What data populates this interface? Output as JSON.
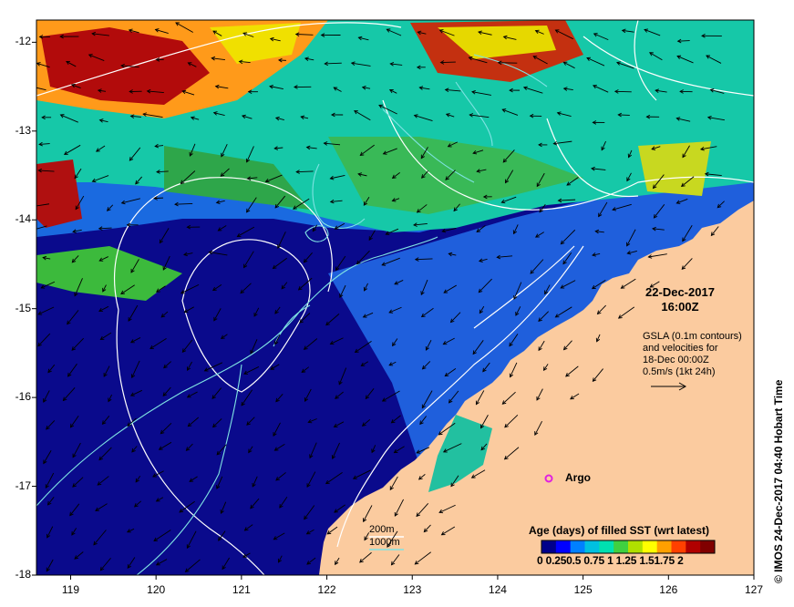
{
  "map": {
    "longitude_ticks": [
      "119",
      "120",
      "121",
      "122",
      "123",
      "124",
      "125",
      "126",
      "127"
    ],
    "latitude_ticks": [
      "-12",
      "-13",
      "-14",
      "-15",
      "-16",
      "-17",
      "-18"
    ],
    "lon_range": [
      118.6,
      127
    ],
    "lat_range": [
      -18,
      -11.75
    ],
    "datetime_line1": "22-Dec-2017",
    "datetime_line2": "16:00Z",
    "gsla_note": [
      "GSLA (0.1m contours)",
      "and velocities for",
      "18-Dec 00:00Z",
      "0.5m/s (1kt 24h)"
    ],
    "argo_label": "Argo",
    "contour_labels": [
      "200m",
      "1000m"
    ],
    "credit": "© IMOS 24-Dec-2017 04:40 Hobart Time",
    "colors": {
      "land": "#fbcb9f",
      "ocean_deep": "#0a0a8c",
      "argo_marker": "#e020e0",
      "contour_line": "#ffffff",
      "bathymetry_line": "#7fe3e3",
      "arrow": "#000000"
    }
  },
  "legend": {
    "title": "Age (days) of filled SST (wrt latest)",
    "tick_labels": "0  0.250.5 0.75  1  1.25 1.51.75  2",
    "colormap": [
      "#00008b",
      "#0000ff",
      "#0080ff",
      "#00c0e0",
      "#00e0b0",
      "#40d040",
      "#b0e000",
      "#ffff00",
      "#ffa000",
      "#ff4000",
      "#b00000",
      "#800000"
    ]
  }
}
